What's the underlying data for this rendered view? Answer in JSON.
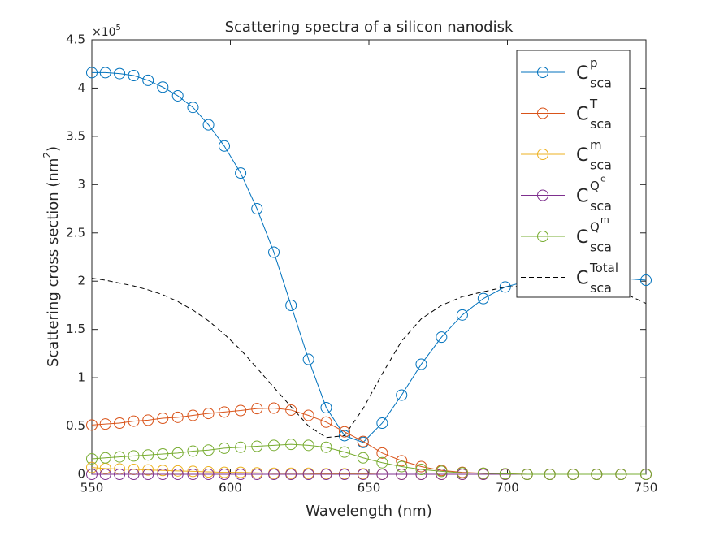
{
  "chart_data": {
    "type": "line",
    "title": "Scattering spectra of a silicon nanodisk",
    "xlabel": "Wavelength (nm)",
    "ylabel": "Scattering cross section (nm",
    "ylabel_superscript": "2",
    "ylabel_end": ")",
    "y_multiplier": "×10",
    "y_multiplier_power": "5",
    "x": [
      550.0,
      554.9,
      560.0,
      565.1,
      570.3,
      575.6,
      581.0,
      586.5,
      592.1,
      597.8,
      603.7,
      609.6,
      615.7,
      621.9,
      628.2,
      634.6,
      641.2,
      647.9,
      654.8,
      661.8,
      668.9,
      676.2,
      683.7,
      691.3,
      699.2,
      707.1,
      715.3,
      723.7,
      732.2,
      741.0,
      750.0
    ],
    "series": [
      {
        "name": "C",
        "superscript": "p",
        "subscript": "sca",
        "color": "#0072BD",
        "marker": "circle",
        "line_style": "solid",
        "values": [
          4.16,
          4.16,
          4.15,
          4.13,
          4.08,
          4.01,
          3.92,
          3.8,
          3.62,
          3.4,
          3.12,
          2.75,
          2.3,
          1.75,
          1.19,
          0.69,
          0.4,
          0.33,
          0.53,
          0.82,
          1.14,
          1.42,
          1.65,
          1.82,
          1.94,
          2.0,
          2.03,
          2.04,
          2.04,
          2.03,
          2.01
        ]
      },
      {
        "name": "C",
        "superscript": "T",
        "subscript": "sca",
        "color": "#D95319",
        "marker": "circle",
        "line_style": "solid",
        "values": [
          0.51,
          0.52,
          0.53,
          0.55,
          0.56,
          0.58,
          0.59,
          0.61,
          0.63,
          0.645,
          0.66,
          0.68,
          0.685,
          0.665,
          0.61,
          0.54,
          0.44,
          0.34,
          0.22,
          0.14,
          0.08,
          0.04,
          0.02,
          0.01,
          0.005,
          0,
          0,
          0,
          0,
          0,
          0
        ]
      },
      {
        "name": "C",
        "superscript": "m",
        "subscript": "sca",
        "color": "#EDB120",
        "marker": "circle",
        "line_style": "solid",
        "values": [
          0.07,
          0.06,
          0.055,
          0.05,
          0.045,
          0.04,
          0.035,
          0.03,
          0.025,
          0.02,
          0.02,
          0.015,
          0.01,
          0.01,
          0.01,
          0.005,
          0.005,
          0.005,
          0,
          0,
          0,
          0,
          0,
          0,
          0,
          0,
          0,
          0,
          0,
          0,
          0
        ]
      },
      {
        "name": "C",
        "superscript": "Q",
        "superscript2": "e",
        "subscript": "sca",
        "color": "#7E2F8E",
        "marker": "circle",
        "line_style": "solid",
        "values": [
          0,
          0,
          0,
          0,
          0,
          0,
          0,
          0,
          0,
          0,
          0,
          0,
          0,
          0,
          0,
          0,
          0,
          0,
          0,
          0,
          0,
          0,
          0,
          0,
          0,
          0,
          0,
          0,
          0,
          0,
          0
        ]
      },
      {
        "name": "C",
        "superscript": "Q",
        "superscript2": "m",
        "subscript": "sca",
        "color": "#77AC30",
        "marker": "circle",
        "line_style": "solid",
        "values": [
          0.16,
          0.17,
          0.18,
          0.19,
          0.2,
          0.21,
          0.22,
          0.24,
          0.25,
          0.27,
          0.28,
          0.29,
          0.3,
          0.31,
          0.3,
          0.28,
          0.23,
          0.17,
          0.12,
          0.08,
          0.05,
          0.03,
          0.015,
          0.01,
          0.005,
          0,
          0,
          0,
          0,
          0,
          0
        ]
      },
      {
        "name": "C",
        "superscript": "Total",
        "subscript": "sca",
        "color": "#000000",
        "marker": "none",
        "line_style": "dashed",
        "values": [
          2.03,
          2.01,
          1.98,
          1.95,
          1.91,
          1.86,
          1.79,
          1.7,
          1.59,
          1.45,
          1.29,
          1.1,
          0.9,
          0.7,
          0.5,
          0.38,
          0.4,
          0.68,
          1.04,
          1.38,
          1.61,
          1.75,
          1.84,
          1.89,
          1.94,
          1.95,
          1.95,
          1.94,
          1.92,
          1.89,
          1.77
        ]
      }
    ],
    "xlim": [
      550,
      750
    ],
    "xticks": [
      550,
      600,
      650,
      700,
      750
    ],
    "ylim": [
      0,
      4.5
    ],
    "yticks": [
      0,
      0.5,
      1,
      1.5,
      2,
      2.5,
      3,
      3.5,
      4,
      4.5
    ],
    "grid": false,
    "legend": "top-right"
  }
}
